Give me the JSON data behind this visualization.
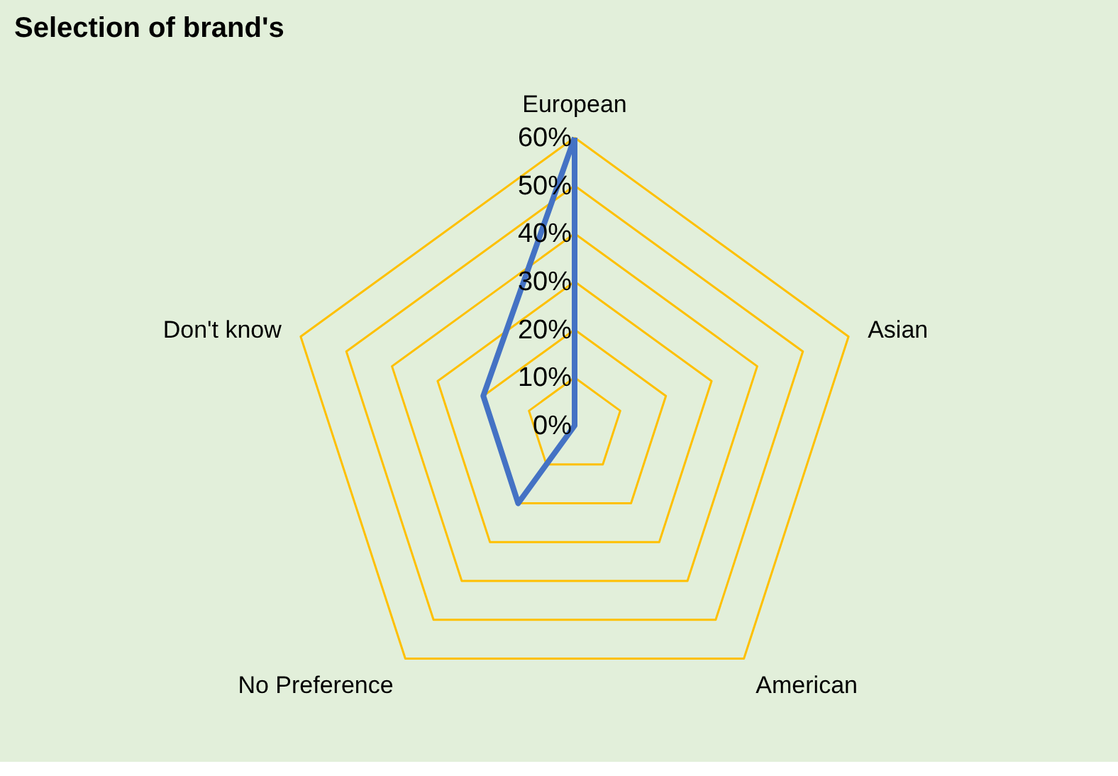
{
  "chart_data": {
    "type": "radar",
    "title": "Selection of brand's",
    "categories": [
      "European",
      "Asian",
      "American",
      "No Preference",
      "Don't know"
    ],
    "series": [
      {
        "color": "#4472c4",
        "values": [
          60,
          0,
          0,
          20,
          20
        ]
      }
    ],
    "ylim": [
      0,
      60
    ],
    "yticks": [
      {
        "value": 0,
        "label": "0%"
      },
      {
        "value": 10,
        "label": "10%"
      },
      {
        "value": 20,
        "label": "20%"
      },
      {
        "value": 30,
        "label": "30%"
      },
      {
        "value": 40,
        "label": "40%"
      },
      {
        "value": 50,
        "label": "50%"
      },
      {
        "value": 60,
        "label": "60%"
      }
    ],
    "grid": true,
    "legend": false,
    "marker": "none",
    "line_style": "solid"
  }
}
